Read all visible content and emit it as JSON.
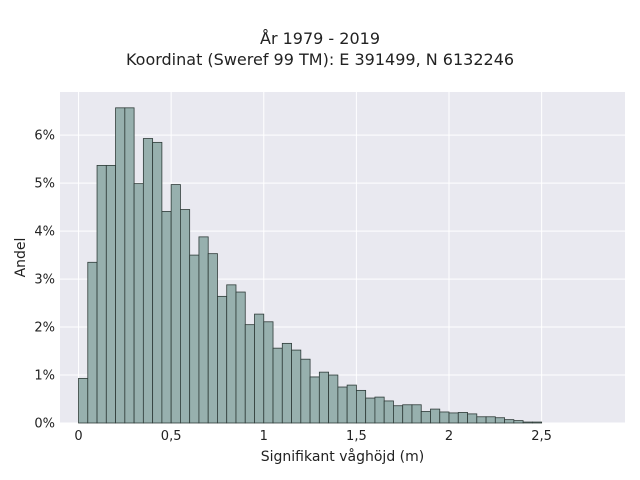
{
  "chart_data": {
    "type": "bar",
    "title": "År 1979 - 2019",
    "subtitle": "Koordinat (Sweref 99 TM): E 391499, N 6132246",
    "xlabel": "Signifikant våghöjd (m)",
    "ylabel": "Andel",
    "xlim": [
      -0.1,
      2.95
    ],
    "ylim": [
      0,
      6.9
    ],
    "bin_width": 0.05,
    "bin_start": 0.0,
    "x_ticks": [
      {
        "value": 0,
        "label": "0"
      },
      {
        "value": 0.5,
        "label": "0,5"
      },
      {
        "value": 1,
        "label": "1"
      },
      {
        "value": 1.5,
        "label": "1,5"
      },
      {
        "value": 2,
        "label": "2"
      },
      {
        "value": 2.5,
        "label": "2,5"
      }
    ],
    "y_ticks": [
      {
        "value": 0,
        "label": "0%"
      },
      {
        "value": 1,
        "label": "1%"
      },
      {
        "value": 2,
        "label": "2%"
      },
      {
        "value": 3,
        "label": "3%"
      },
      {
        "value": 4,
        "label": "4%"
      },
      {
        "value": 5,
        "label": "5%"
      },
      {
        "value": 6,
        "label": "6%"
      }
    ],
    "values": [
      0.93,
      3.35,
      5.37,
      5.37,
      6.57,
      6.57,
      4.99,
      5.93,
      5.85,
      4.41,
      4.97,
      4.45,
      3.5,
      3.88,
      3.53,
      2.64,
      2.88,
      2.73,
      2.05,
      2.27,
      2.11,
      1.56,
      1.66,
      1.52,
      1.33,
      0.96,
      1.06,
      1.0,
      0.75,
      0.79,
      0.68,
      0.52,
      0.54,
      0.46,
      0.36,
      0.38,
      0.38,
      0.24,
      0.29,
      0.23,
      0.21,
      0.22,
      0.19,
      0.13,
      0.13,
      0.11,
      0.07,
      0.05,
      0.02,
      0.02
    ],
    "grid": true,
    "colors": {
      "plot_background": "#e9e9f0",
      "grid": "#ffffff",
      "bar_fill": "#97b0ae",
      "bar_edge": "#2e3b38"
    }
  }
}
